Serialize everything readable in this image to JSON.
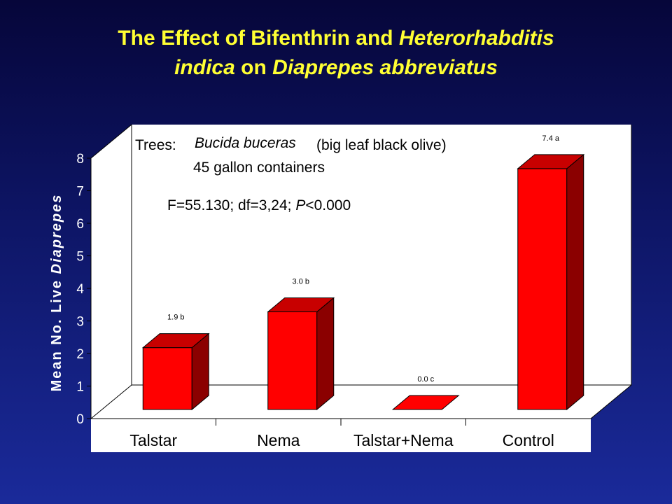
{
  "title": {
    "part1": "The Effect of Bifenthrin and ",
    "part2_italic": "Heterorhabditis",
    "part3_italic": "indica",
    "part4": " on ",
    "part5_italic": "Diaprepes abbreviatus"
  },
  "annotations": {
    "trees_label": "Trees:",
    "species": "Bucida buceras",
    "common_name": "(big leaf black olive)",
    "containers": "45 gallon containers",
    "stats_prefix": "F=55.130; df=3,24; ",
    "stats_p": "P",
    "stats_suffix": "<0.000"
  },
  "colors": {
    "bar_front": "#ff0000",
    "bar_side": "#8b0000",
    "bar_top": "#c80000",
    "plot_wall": "#ffffff",
    "title": "#ffff33",
    "axis_text": "#ffffff"
  },
  "chart_data": {
    "type": "bar",
    "categories": [
      "Talstar",
      "Nema",
      "Talstar+Nema",
      "Control"
    ],
    "values": [
      1.9,
      3.0,
      0.0,
      7.4
    ],
    "data_labels": [
      "1.9 b",
      "3.0 b",
      "0.0 c",
      "7.4 a"
    ],
    "ylabel_prefix": "Mean No. Live ",
    "ylabel_italic": "Diaprepes",
    "ylim": [
      0,
      8
    ],
    "yticks": [
      "0",
      "1",
      "2",
      "3",
      "4",
      "5",
      "6",
      "7",
      "8"
    ],
    "grid": false,
    "style": "3d"
  }
}
